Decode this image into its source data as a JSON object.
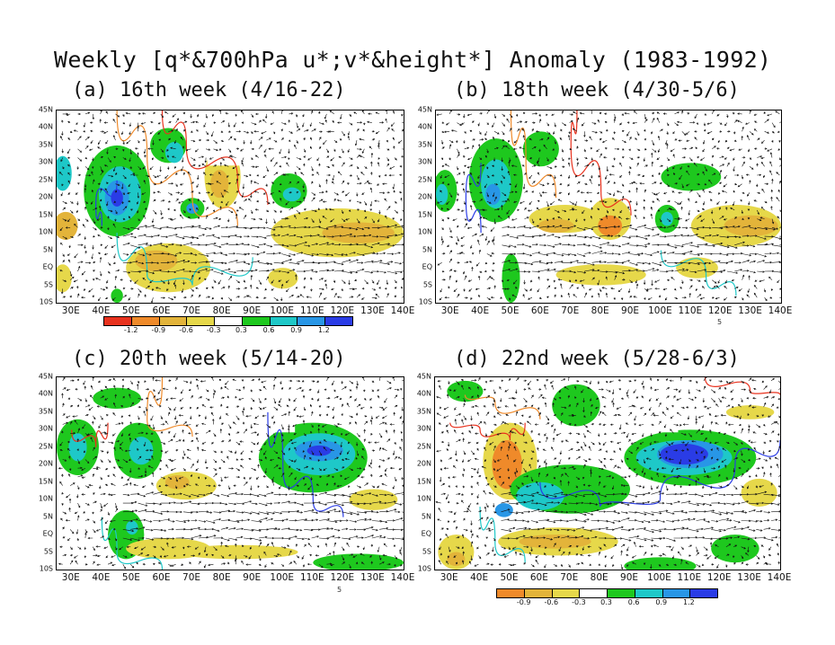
{
  "figure_title": "Weekly [q*&700hPa u*;v*&height*] Anomaly (1983-1992)",
  "panels": [
    {
      "id": "a",
      "title": "(a) 16th week (4/16-22)"
    },
    {
      "id": "b",
      "title": "(b) 18th week (4/30-5/6)"
    },
    {
      "id": "c",
      "title": "(c) 20th week (5/14-20)"
    },
    {
      "id": "d",
      "title": "(d) 22nd week (5/28-6/3)"
    }
  ],
  "axes": {
    "lon_range": [
      25,
      140
    ],
    "lat_range": [
      -10,
      45
    ],
    "lon_ticks": [
      30,
      40,
      50,
      60,
      70,
      80,
      90,
      100,
      110,
      120,
      130,
      140
    ],
    "lon_labels": [
      "30E",
      "40E",
      "50E",
      "60E",
      "70E",
      "80E",
      "90E",
      "100E",
      "110E",
      "120E",
      "130E",
      "140E"
    ],
    "lat_ticks": [
      45,
      40,
      35,
      30,
      25,
      20,
      15,
      10,
      5,
      0,
      -5,
      -10
    ],
    "lat_labels": [
      "45N",
      "40N",
      "35N",
      "30N",
      "25N",
      "20N",
      "15N",
      "10N",
      "5N",
      "EQ",
      "5S",
      "10S"
    ]
  },
  "colorbar_a": {
    "colors": [
      "#e8321e",
      "#ef8a2a",
      "#e3b43a",
      "#e6d84a",
      "#ffffff",
      "#1ec81e",
      "#1ec8c8",
      "#2896e6",
      "#2a3ce6"
    ],
    "labels": [
      "-1.2",
      "-0.9",
      "-0.6",
      "-0.3",
      "0.3",
      "0.6",
      "0.9",
      "1.2"
    ]
  },
  "colorbar_d": {
    "colors": [
      "#ef8a2a",
      "#e3b43a",
      "#e6d84a",
      "#ffffff",
      "#1ec81e",
      "#1ec8c8",
      "#2896e6",
      "#2a3ce6"
    ],
    "labels": [
      "-0.9",
      "-0.6",
      "-0.3",
      "0.3",
      "0.6",
      "0.9",
      "1.2"
    ]
  },
  "reference_vector_label": "5",
  "colors": {
    "red": "#e8321e",
    "orange": "#ef8a2a",
    "ochre": "#e3b43a",
    "yellow": "#e6d84a",
    "green": "#1ec81e",
    "cyan": "#1ec8c8",
    "lightblue": "#2896e6",
    "blue": "#2a3ce6"
  }
}
